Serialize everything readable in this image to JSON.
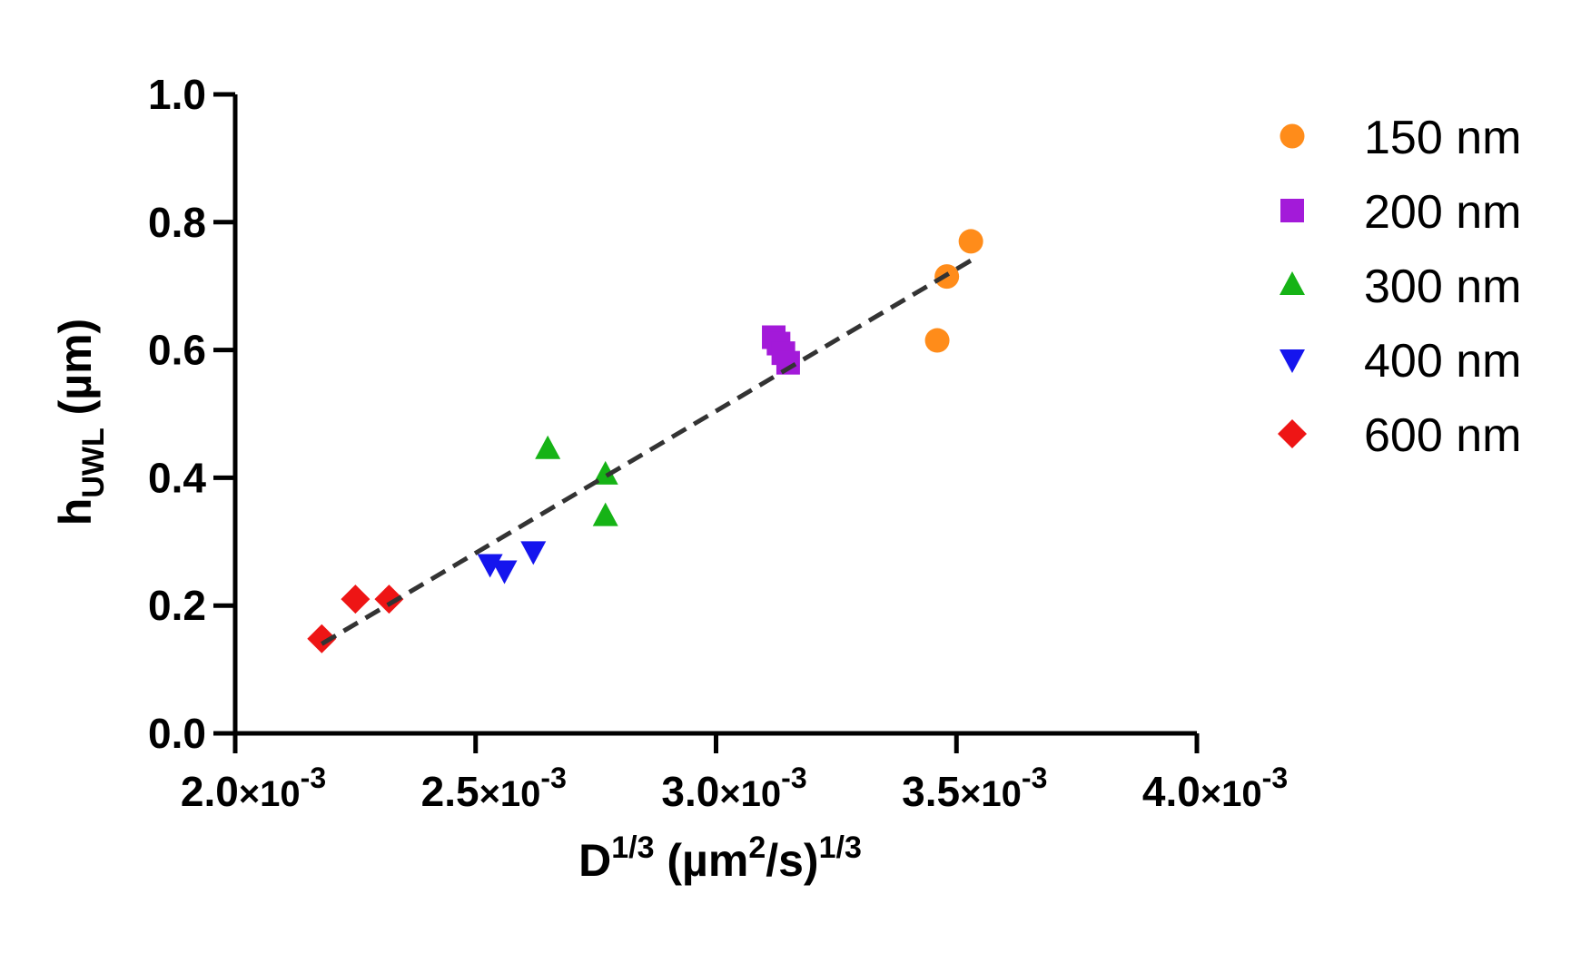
{
  "chart_data": {
    "type": "scatter",
    "title": "",
    "xlabel": {
      "base": "D",
      "exp": "1/3",
      "unit_a": " (µm",
      "unit_exp": "2",
      "unit_b": "/s)",
      "unit_outer_exp": "1/3"
    },
    "ylabel": {
      "base": "h",
      "sub": "UWL",
      "unit": " (µm)"
    },
    "xlim": [
      0.002,
      0.004
    ],
    "ylim": [
      0.0,
      1.0
    ],
    "xticks": [
      {
        "value": 0.002,
        "mantissa": "2.0",
        "times": "×10",
        "exp": "-3"
      },
      {
        "value": 0.0025,
        "mantissa": "2.5",
        "times": "×10",
        "exp": "-3"
      },
      {
        "value": 0.003,
        "mantissa": "3.0",
        "times": "×10",
        "exp": "-3"
      },
      {
        "value": 0.0035,
        "mantissa": "3.5",
        "times": "×10",
        "exp": "-3"
      },
      {
        "value": 0.004,
        "mantissa": "4.0",
        "times": "×10",
        "exp": "-3"
      }
    ],
    "yticks": [
      {
        "value": 0.0,
        "label": "0.0"
      },
      {
        "value": 0.2,
        "label": "0.2"
      },
      {
        "value": 0.4,
        "label": "0.4"
      },
      {
        "value": 0.6,
        "label": "0.6"
      },
      {
        "value": 0.8,
        "label": "0.8"
      },
      {
        "value": 1.0,
        "label": "1.0"
      }
    ],
    "grid": false,
    "legend_position": "right",
    "series": [
      {
        "name": "150 nm",
        "marker": "circle",
        "color": "#ff8c1a",
        "points": [
          [
            0.00353,
            0.77
          ],
          [
            0.00348,
            0.715
          ],
          [
            0.00346,
            0.615
          ]
        ]
      },
      {
        "name": "200 nm",
        "marker": "square",
        "color": "#a31ad9",
        "points": [
          [
            0.00312,
            0.62
          ],
          [
            0.00313,
            0.61
          ],
          [
            0.00314,
            0.595
          ],
          [
            0.00315,
            0.58
          ]
        ]
      },
      {
        "name": "300 nm",
        "marker": "triangle-up",
        "color": "#16b316",
        "points": [
          [
            0.00265,
            0.445
          ],
          [
            0.00277,
            0.405
          ],
          [
            0.00277,
            0.34
          ]
        ]
      },
      {
        "name": "400 nm",
        "marker": "triangle-down",
        "color": "#1515ee",
        "points": [
          [
            0.00253,
            0.265
          ],
          [
            0.00256,
            0.255
          ],
          [
            0.00262,
            0.285
          ]
        ]
      },
      {
        "name": "600 nm",
        "marker": "diamond",
        "color": "#ee1515",
        "points": [
          [
            0.00218,
            0.148
          ],
          [
            0.00225,
            0.21
          ],
          [
            0.00232,
            0.21
          ]
        ]
      }
    ],
    "fit_line": {
      "style": "dashed",
      "color": "#333333",
      "x": [
        0.00218,
        0.00353
      ],
      "y": [
        0.14,
        0.74
      ]
    }
  }
}
